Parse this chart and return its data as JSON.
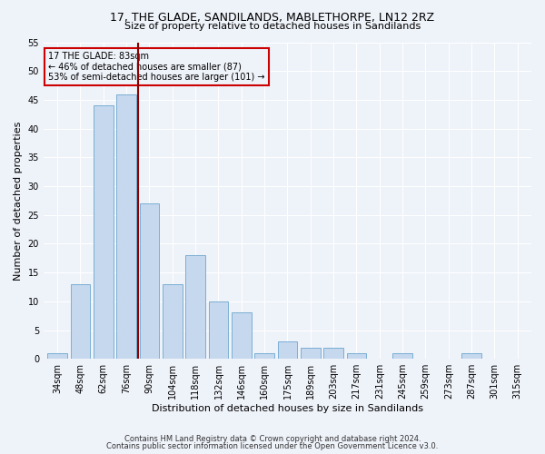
{
  "title": "17, THE GLADE, SANDILANDS, MABLETHORPE, LN12 2RZ",
  "subtitle": "Size of property relative to detached houses in Sandilands",
  "xlabel": "Distribution of detached houses by size in Sandilands",
  "ylabel": "Number of detached properties",
  "footnote1": "Contains HM Land Registry data © Crown copyright and database right 2024.",
  "footnote2": "Contains public sector information licensed under the Open Government Licence v3.0.",
  "annotation_line1": "17 THE GLADE: 83sqm",
  "annotation_line2": "← 46% of detached houses are smaller (87)",
  "annotation_line3": "53% of semi-detached houses are larger (101) →",
  "bin_labels": [
    "34sqm",
    "48sqm",
    "62sqm",
    "76sqm",
    "90sqm",
    "104sqm",
    "118sqm",
    "132sqm",
    "146sqm",
    "160sqm",
    "175sqm",
    "189sqm",
    "203sqm",
    "217sqm",
    "231sqm",
    "245sqm",
    "259sqm",
    "273sqm",
    "287sqm",
    "301sqm",
    "315sqm"
  ],
  "counts": [
    1,
    13,
    44,
    46,
    27,
    13,
    18,
    10,
    8,
    1,
    3,
    2,
    2,
    1,
    0,
    1,
    0,
    0,
    1,
    0,
    0
  ],
  "bar_color": "#c5d8ee",
  "bar_edge_color": "#7bafd4",
  "vline_color": "#8b0000",
  "vline_bin_index": 3.5,
  "bg_color": "#eef2f9",
  "annotation_box_color": "#cc0000",
  "ylim": [
    0,
    55
  ],
  "yticks": [
    0,
    5,
    10,
    15,
    20,
    25,
    30,
    35,
    40,
    45,
    50,
    55
  ],
  "title_fontsize": 9,
  "subtitle_fontsize": 8,
  "ylabel_fontsize": 8,
  "xlabel_fontsize": 8,
  "annotation_fontsize": 7,
  "tick_fontsize": 7
}
